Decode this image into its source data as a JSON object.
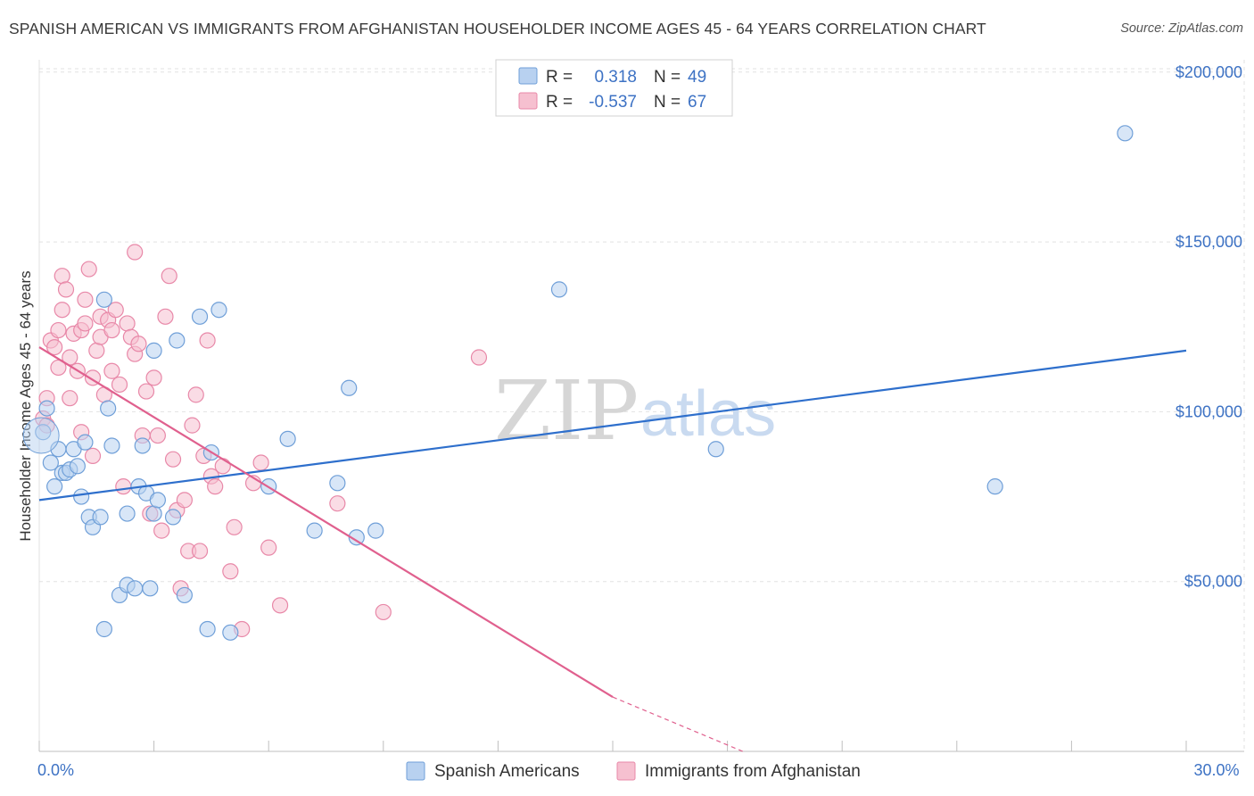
{
  "header": {
    "title": "SPANISH AMERICAN VS IMMIGRANTS FROM AFGHANISTAN HOUSEHOLDER INCOME AGES 45 - 64 YEARS CORRELATION CHART",
    "source": "Source: ZipAtlas.com"
  },
  "watermark": {
    "zip": "ZIP",
    "atlas": "atlas"
  },
  "colors": {
    "blue_fill": "#b8d1f0",
    "blue_stroke": "#6f9fd8",
    "blue_line": "#2e6fcc",
    "pink_fill": "#f6c0d0",
    "pink_stroke": "#e888a8",
    "pink_line": "#e0608e",
    "grid": "#e2e2e2",
    "axis_text": "#3d72c4"
  },
  "legend": {
    "rows": [
      {
        "r_label": "R =",
        "r_value": "0.318",
        "n_label": "N =",
        "n_value": "49",
        "series": "blue"
      },
      {
        "r_label": "R =",
        "r_value": "-0.537",
        "n_label": "N =",
        "n_value": "67",
        "series": "pink"
      }
    ]
  },
  "bottom_legend": [
    "Spanish Americans",
    "Immigrants from Afghanistan"
  ],
  "chart_data": {
    "type": "scatter",
    "title": "SPANISH AMERICAN VS IMMIGRANTS FROM AFGHANISTAN HOUSEHOLDER INCOME AGES 45 - 64 YEARS CORRELATION CHART",
    "xlabel": "",
    "ylabel": "Householder Income Ages 45 - 64 years",
    "xlim": [
      0,
      30
    ],
    "ylim": [
      0,
      200000
    ],
    "x_tick_labels": [
      "0.0%",
      "30.0%"
    ],
    "x_tick_values": [
      0,
      30
    ],
    "y_tick_labels": [
      "$50,000",
      "$100,000",
      "$150,000",
      "$200,000"
    ],
    "y_tick_values": [
      50000,
      100000,
      150000,
      200000
    ],
    "series": [
      {
        "name": "Spanish Americans",
        "color": "blue",
        "R": 0.318,
        "N": 49,
        "trend": {
          "x": [
            0.0,
            30.0
          ],
          "y": [
            74000,
            118000
          ],
          "dashed_from": null
        },
        "points": [
          [
            0.1,
            94000
          ],
          [
            0.2,
            101000
          ],
          [
            0.3,
            85000
          ],
          [
            0.4,
            78000
          ],
          [
            0.5,
            89000
          ],
          [
            0.6,
            82000
          ],
          [
            0.7,
            82000
          ],
          [
            0.8,
            83000
          ],
          [
            0.9,
            89000
          ],
          [
            1.0,
            84000
          ],
          [
            1.1,
            75000
          ],
          [
            1.2,
            91000
          ],
          [
            1.3,
            69000
          ],
          [
            1.4,
            66000
          ],
          [
            1.6,
            69000
          ],
          [
            1.7,
            133000
          ],
          [
            1.8,
            101000
          ],
          [
            1.9,
            90000
          ],
          [
            2.1,
            46000
          ],
          [
            2.3,
            49000
          ],
          [
            2.3,
            70000
          ],
          [
            2.5,
            48000
          ],
          [
            2.6,
            78000
          ],
          [
            2.7,
            90000
          ],
          [
            2.8,
            76000
          ],
          [
            2.9,
            48000
          ],
          [
            3.0,
            118000
          ],
          [
            3.0,
            70000
          ],
          [
            3.1,
            74000
          ],
          [
            3.5,
            69000
          ],
          [
            3.6,
            121000
          ],
          [
            3.8,
            46000
          ],
          [
            4.2,
            128000
          ],
          [
            4.4,
            36000
          ],
          [
            4.5,
            88000
          ],
          [
            4.7,
            130000
          ],
          [
            5.0,
            35000
          ],
          [
            6.0,
            78000
          ],
          [
            6.5,
            92000
          ],
          [
            7.2,
            65000
          ],
          [
            7.8,
            79000
          ],
          [
            8.1,
            107000
          ],
          [
            8.3,
            63000
          ],
          [
            8.8,
            65000
          ],
          [
            13.6,
            136000
          ],
          [
            17.7,
            89000
          ],
          [
            25.0,
            78000
          ],
          [
            28.4,
            182000
          ],
          [
            1.7,
            36000
          ]
        ]
      },
      {
        "name": "Immigrants from Afghanistan",
        "color": "pink",
        "R": -0.537,
        "N": 67,
        "trend": {
          "x": [
            0.0,
            15.0
          ],
          "y": [
            119000,
            16000
          ],
          "dashed_to": {
            "x": 18.4,
            "y": -8000
          }
        },
        "points": [
          [
            0.1,
            98000
          ],
          [
            0.2,
            104000
          ],
          [
            0.2,
            96000
          ],
          [
            0.3,
            121000
          ],
          [
            0.4,
            119000
          ],
          [
            0.5,
            124000
          ],
          [
            0.5,
            113000
          ],
          [
            0.6,
            130000
          ],
          [
            0.6,
            140000
          ],
          [
            0.7,
            136000
          ],
          [
            0.8,
            116000
          ],
          [
            0.8,
            104000
          ],
          [
            0.9,
            123000
          ],
          [
            1.0,
            112000
          ],
          [
            1.1,
            124000
          ],
          [
            1.1,
            94000
          ],
          [
            1.2,
            133000
          ],
          [
            1.2,
            126000
          ],
          [
            1.3,
            142000
          ],
          [
            1.4,
            87000
          ],
          [
            1.4,
            110000
          ],
          [
            1.5,
            118000
          ],
          [
            1.6,
            128000
          ],
          [
            1.6,
            122000
          ],
          [
            1.7,
            105000
          ],
          [
            1.8,
            127000
          ],
          [
            1.9,
            124000
          ],
          [
            1.9,
            112000
          ],
          [
            2.0,
            130000
          ],
          [
            2.1,
            108000
          ],
          [
            2.2,
            78000
          ],
          [
            2.3,
            126000
          ],
          [
            2.4,
            122000
          ],
          [
            2.5,
            147000
          ],
          [
            2.5,
            117000
          ],
          [
            2.6,
            120000
          ],
          [
            2.7,
            93000
          ],
          [
            2.8,
            106000
          ],
          [
            2.9,
            70000
          ],
          [
            3.0,
            110000
          ],
          [
            3.1,
            93000
          ],
          [
            3.2,
            65000
          ],
          [
            3.3,
            128000
          ],
          [
            3.4,
            140000
          ],
          [
            3.5,
            86000
          ],
          [
            3.6,
            71000
          ],
          [
            3.7,
            48000
          ],
          [
            3.8,
            74000
          ],
          [
            3.9,
            59000
          ],
          [
            4.0,
            96000
          ],
          [
            4.1,
            105000
          ],
          [
            4.2,
            59000
          ],
          [
            4.3,
            87000
          ],
          [
            4.4,
            121000
          ],
          [
            4.5,
            81000
          ],
          [
            4.6,
            78000
          ],
          [
            4.8,
            84000
          ],
          [
            5.0,
            53000
          ],
          [
            5.1,
            66000
          ],
          [
            5.3,
            36000
          ],
          [
            5.6,
            79000
          ],
          [
            5.8,
            85000
          ],
          [
            6.0,
            60000
          ],
          [
            6.3,
            43000
          ],
          [
            7.8,
            73000
          ],
          [
            11.5,
            116000
          ],
          [
            9.0,
            41000
          ]
        ]
      }
    ]
  }
}
